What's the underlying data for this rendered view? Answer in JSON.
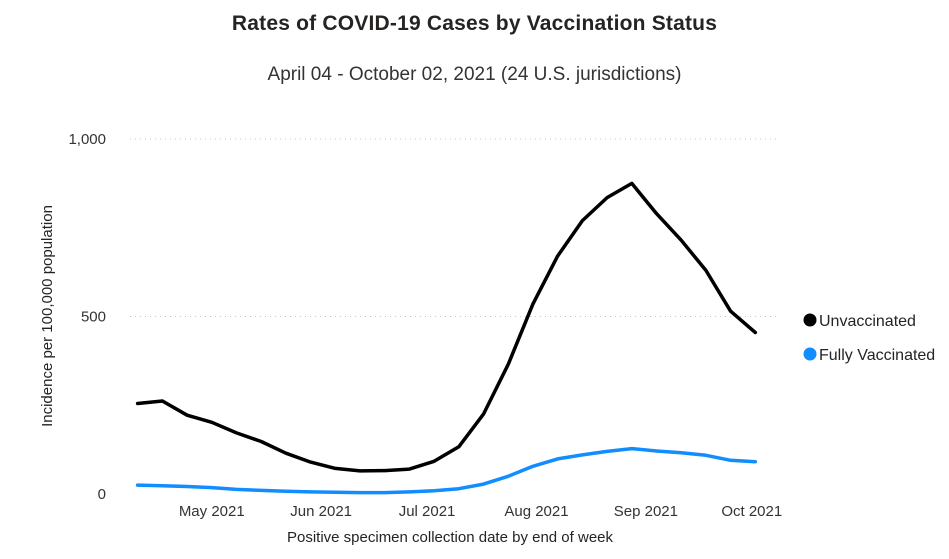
{
  "chart_data": {
    "type": "line",
    "title": "Rates of COVID-19 Cases by Vaccination Status",
    "subtitle": "April 04 - October 02, 2021 (24 U.S. jurisdictions)",
    "xlabel": "Positive specimen collection date by end of week",
    "ylabel": "Incidence per 100,000 population",
    "ylim": [
      0,
      1000
    ],
    "y_ticks": [
      0,
      500,
      1000
    ],
    "y_tick_labels": [
      "0",
      "500",
      "1,000"
    ],
    "x_tick_labels": [
      "May 2021",
      "Jun 2021",
      "Jul 2021",
      "Aug 2021",
      "Sep 2021",
      "Oct 2021"
    ],
    "x_tick_dates": [
      "2021-05-01",
      "2021-06-01",
      "2021-07-01",
      "2021-08-01",
      "2021-09-01",
      "2021-10-01"
    ],
    "xlim": [
      "2021-04-05",
      "2021-10-09"
    ],
    "grid": "horizontal-dotted",
    "legend": "right",
    "x": [
      "2021-04-10",
      "2021-04-17",
      "2021-04-24",
      "2021-05-01",
      "2021-05-08",
      "2021-05-15",
      "2021-05-22",
      "2021-05-29",
      "2021-06-05",
      "2021-06-12",
      "2021-06-19",
      "2021-06-26",
      "2021-07-03",
      "2021-07-10",
      "2021-07-17",
      "2021-07-24",
      "2021-07-31",
      "2021-08-07",
      "2021-08-14",
      "2021-08-21",
      "2021-08-28",
      "2021-09-04",
      "2021-09-11",
      "2021-09-18",
      "2021-09-25",
      "2021-10-02"
    ],
    "series": [
      {
        "name": "Unvaccinated",
        "color": "#000000",
        "values": [
          255,
          262,
          222,
          202,
          172,
          148,
          115,
          90,
          72,
          65,
          66,
          70,
          92,
          133,
          225,
          365,
          535,
          670,
          770,
          835,
          875,
          790,
          715,
          630,
          515,
          455
        ]
      },
      {
        "name": "Fully Vaccinated",
        "color": "#118DFF",
        "values": [
          25,
          23,
          21,
          18,
          13,
          10,
          8,
          6,
          5,
          4,
          4,
          6,
          9,
          15,
          28,
          50,
          78,
          99,
          110,
          120,
          128,
          121,
          116,
          109,
          95,
          91
        ]
      }
    ]
  }
}
